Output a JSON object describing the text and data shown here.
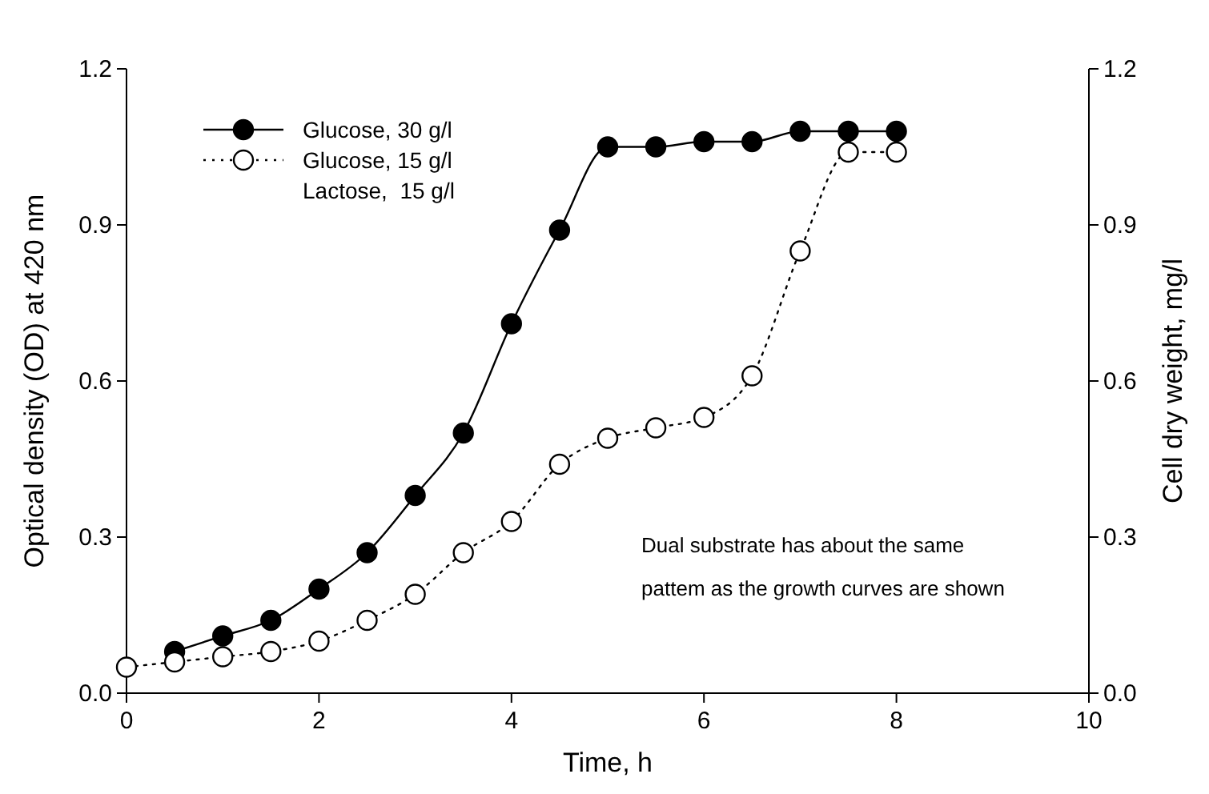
{
  "chart_data": {
    "type": "line",
    "xlabel": "Time, h",
    "ylabel": "Optical density (OD) at 420 nm",
    "y2label": "Cell dry weight, mg/l",
    "x": [
      0,
      0.5,
      1,
      1.5,
      2,
      2.5,
      3,
      3.5,
      4,
      4.5,
      5,
      5.5,
      6,
      6.5,
      7,
      7.5,
      8
    ],
    "series": [
      {
        "name": "Glucose, 30 g/l",
        "color": "#000000",
        "marker": "circle",
        "line_style": "solid",
        "values": [
          null,
          0.08,
          0.11,
          0.14,
          0.2,
          0.27,
          0.38,
          0.5,
          0.71,
          0.89,
          1.05,
          1.05,
          1.06,
          1.06,
          1.08,
          1.08,
          1.08
        ]
      },
      {
        "name": "Glucose, 15 g/l\nLactose,  15 g/l",
        "color": "#000000",
        "marker": "circle",
        "line_style": "dotted",
        "values": [
          0.05,
          0.06,
          0.07,
          0.08,
          0.1,
          0.14,
          0.19,
          0.27,
          0.33,
          0.44,
          0.49,
          0.51,
          0.53,
          0.61,
          0.85,
          1.04,
          1.04
        ]
      }
    ],
    "xlim": [
      0,
      10
    ],
    "xticks": [
      0,
      2,
      4,
      6,
      8,
      10
    ],
    "ylim": [
      0,
      1.2
    ],
    "yticks": [
      {
        "value": 0,
        "label": "0.0"
      },
      0.3,
      0.6,
      0.9,
      1.2
    ],
    "y2lim": [
      0,
      1.2
    ],
    "y2ticks": [
      {
        "value": 0,
        "label": "0.0"
      },
      0.3,
      0.6,
      0.9,
      1.2
    ],
    "legend": "top left",
    "grid": false,
    "annotations": [
      "Dual substrate has about the same",
      "pattem as the growth curves are shown"
    ]
  }
}
